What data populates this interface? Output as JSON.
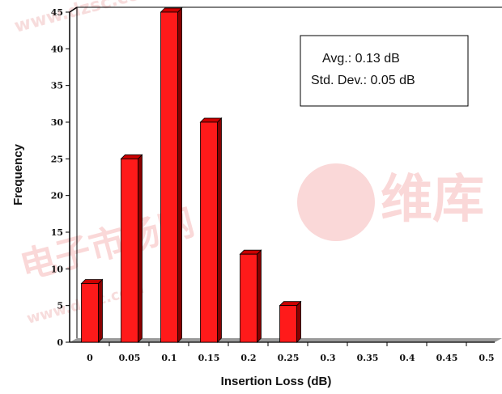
{
  "chart_data": {
    "type": "bar",
    "categories": [
      "0",
      "0.05",
      "0.1",
      "0.15",
      "0.2",
      "0.25",
      "0.3",
      "0.35",
      "0.4",
      "0.45",
      "0.5"
    ],
    "values": [
      8,
      25,
      45,
      30,
      12,
      5,
      0,
      0,
      0,
      0,
      0
    ],
    "xlabel": "Insertion Loss (dB)",
    "ylabel": "Frequency",
    "ylim": [
      0,
      45
    ],
    "yticks": [
      0,
      5,
      10,
      15,
      20,
      25,
      30,
      35,
      40,
      45
    ],
    "grid": false,
    "bar_style": "3d",
    "colors": {
      "bar_front": "#ff1a1a",
      "bar_side": "#8b0000",
      "bar_top": "#cc0000",
      "floor": "#9a9a9a"
    }
  },
  "stats_box": {
    "avg": "Avg.:  0.13 dB",
    "std": "Std. Dev.:  0.05 dB"
  },
  "watermark": {
    "url_text": "www.dzsc.com",
    "cn_text": "电子市场网",
    "logo_text": "维库",
    "color": "#f3c7c7"
  }
}
